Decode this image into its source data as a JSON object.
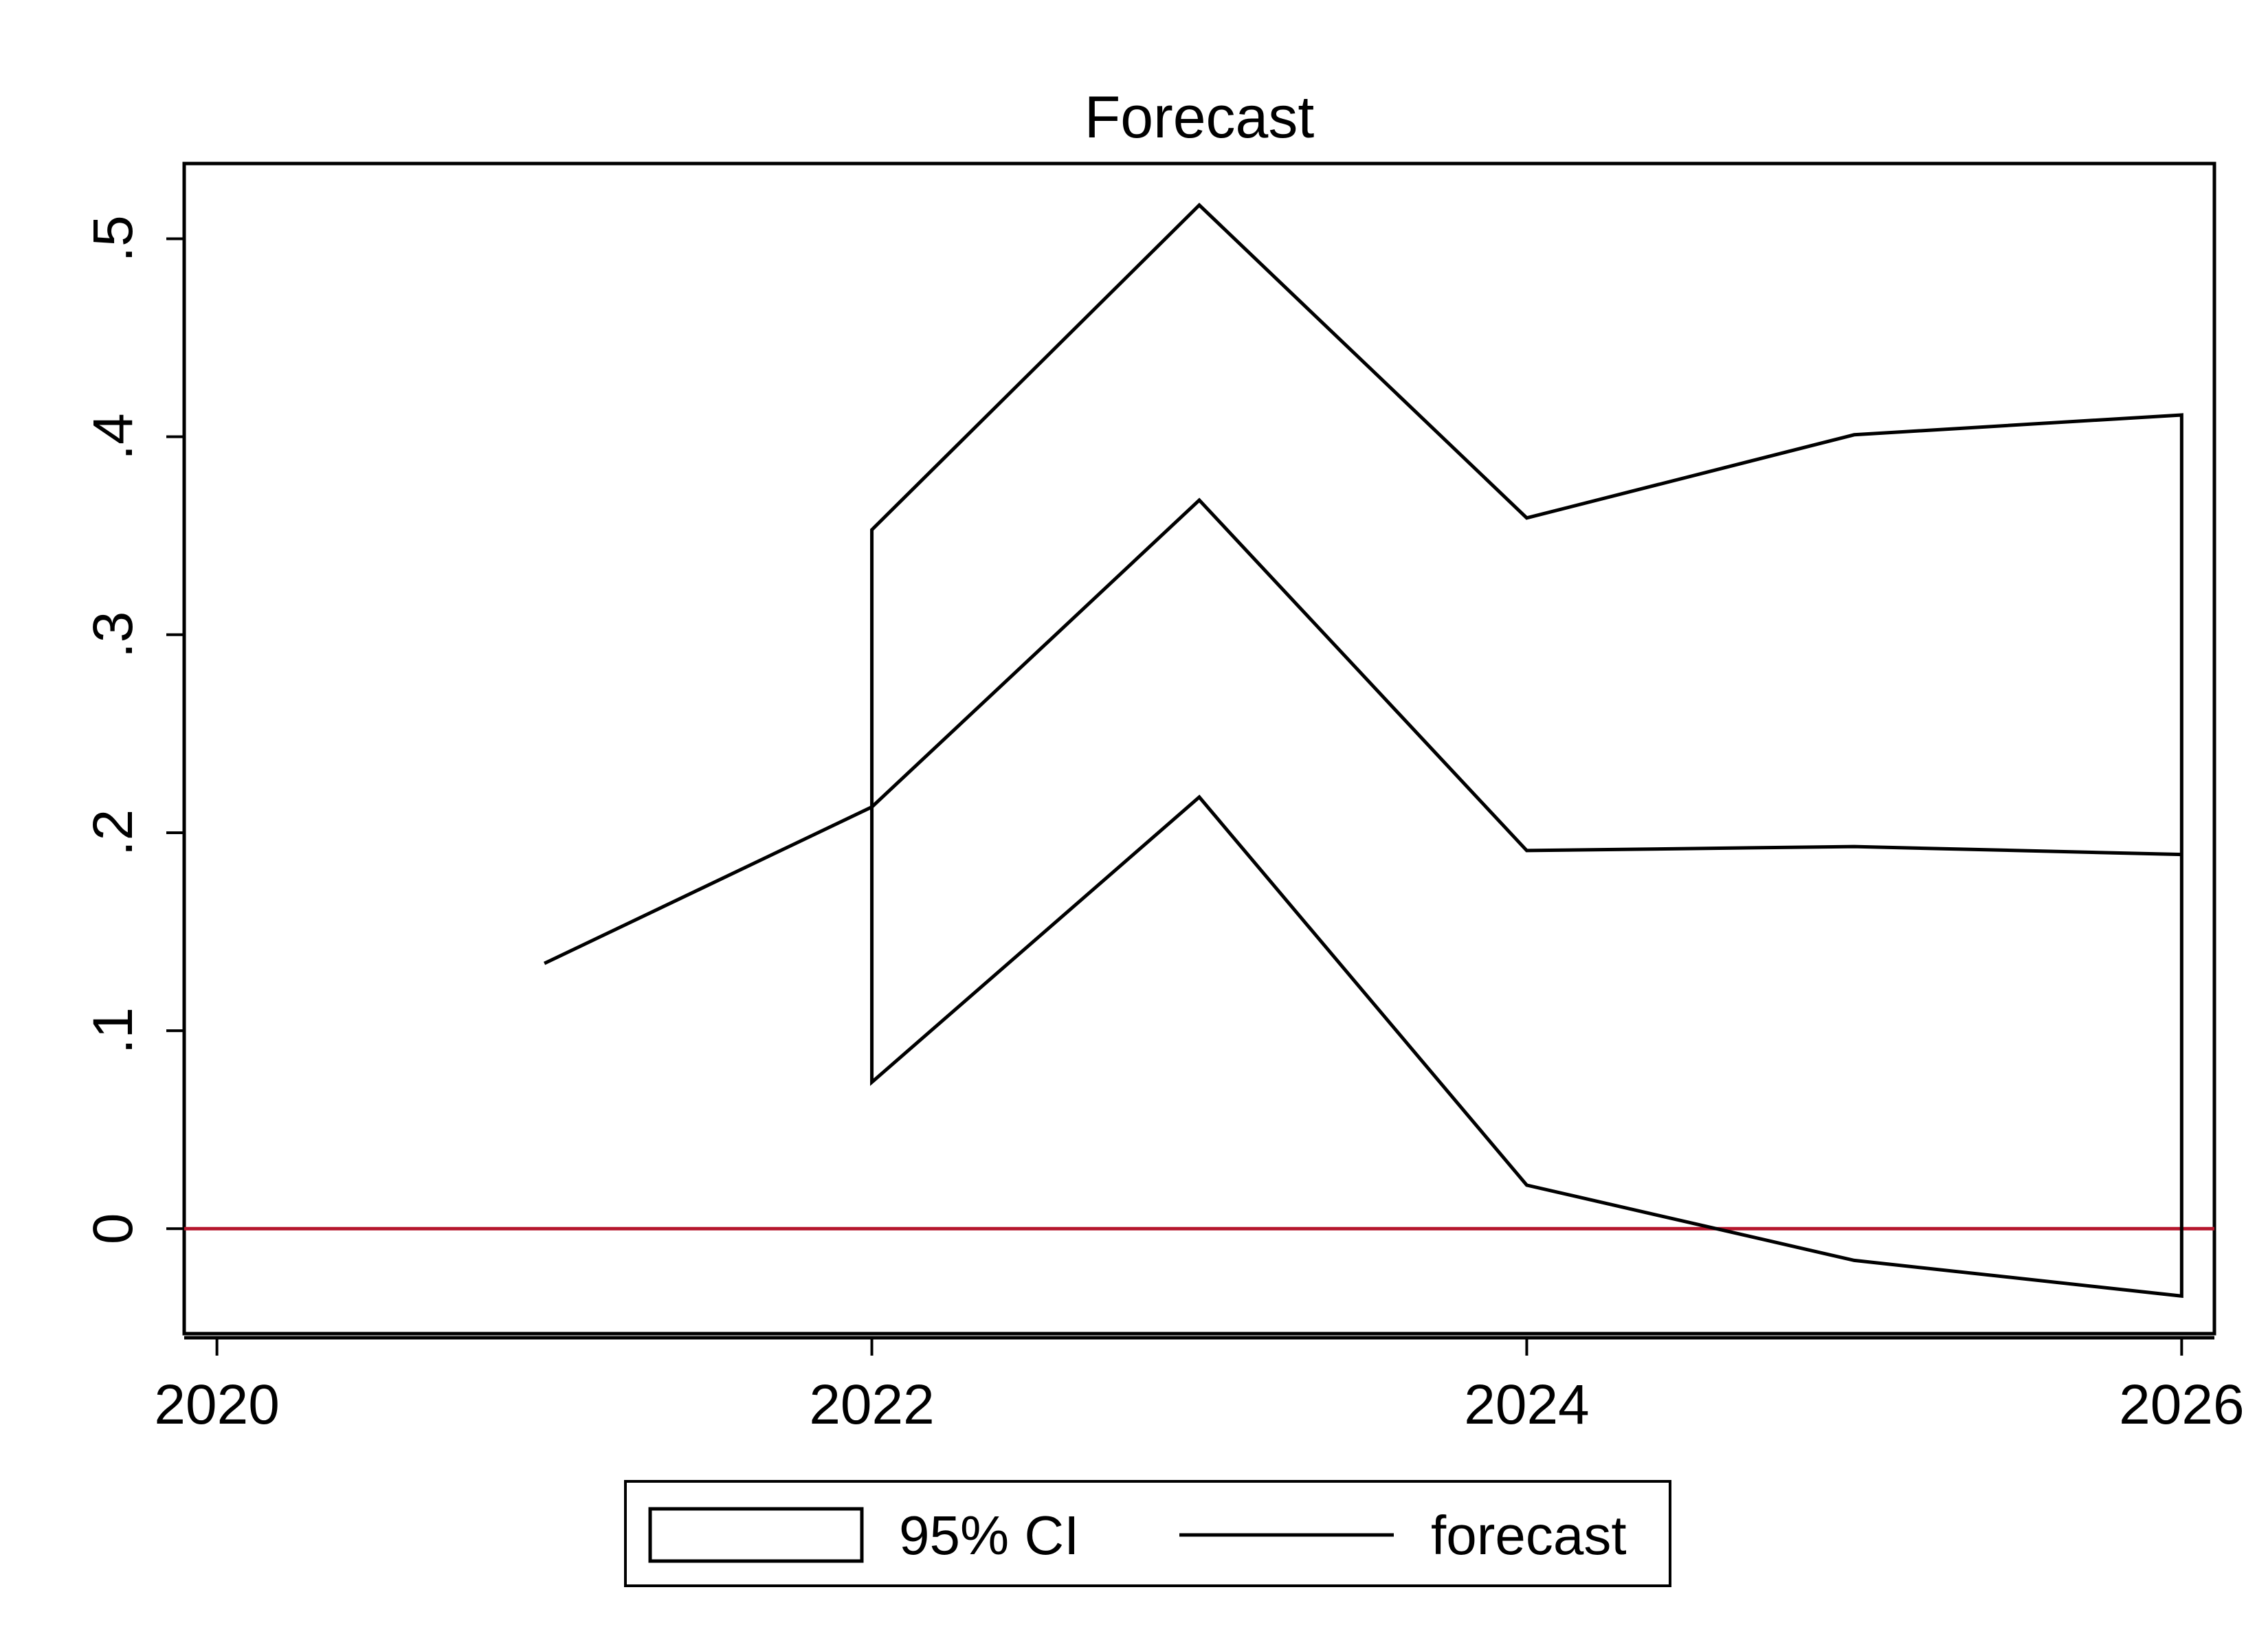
{
  "chart_data": {
    "type": "line",
    "title": "Forecast",
    "xlabel": "",
    "ylabel": "",
    "xlim": [
      2019.9,
      2026.1
    ],
    "ylim": [
      -0.053,
      0.538
    ],
    "x_ticks": [
      2020,
      2022,
      2024,
      2026
    ],
    "x_tick_labels": [
      "2020",
      "2022",
      "2024",
      "2026"
    ],
    "y_ticks": [
      0,
      0.1,
      0.2,
      0.3,
      0.4,
      0.5
    ],
    "y_tick_labels": [
      "0",
      ".1",
      ".2",
      ".3",
      ".4",
      ".5"
    ],
    "grid": false,
    "legend_position": "bottom",
    "series": [
      {
        "name": "forecast",
        "style": "line",
        "x": [
          2021,
          2022,
          2023,
          2024,
          2025,
          2026
        ],
        "values": [
          0.134,
          0.213,
          0.368,
          0.191,
          0.193,
          0.189
        ]
      },
      {
        "name": "95% CI",
        "style": "band",
        "x": [
          2022,
          2023,
          2024,
          2025,
          2026
        ],
        "upper": [
          0.353,
          0.517,
          0.359,
          0.401,
          0.411
        ],
        "lower": [
          0.074,
          0.218,
          0.022,
          -0.016,
          -0.034
        ]
      }
    ],
    "reference_lines": [
      {
        "axis": "y",
        "value": 0,
        "color": "#b5162c"
      }
    ],
    "colors": {
      "line": "#000000",
      "reference": "#b5162c"
    }
  }
}
